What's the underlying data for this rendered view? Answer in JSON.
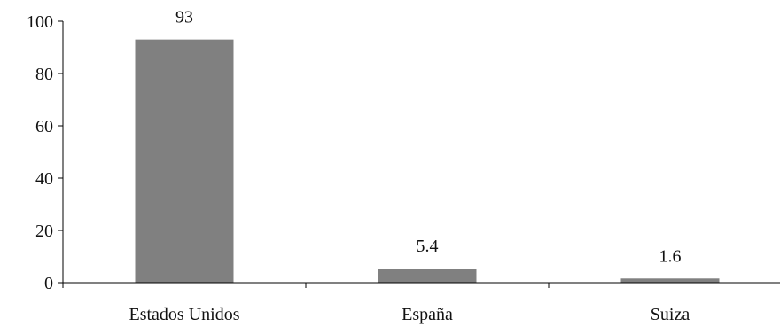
{
  "chart_data": {
    "type": "bar",
    "categories": [
      "Estados Unidos",
      "España",
      "Suiza"
    ],
    "values": [
      93,
      5.4,
      1.6
    ],
    "data_labels": [
      "93",
      "5.4",
      "1.6"
    ],
    "ylim": [
      0,
      100
    ],
    "yticks": [
      0,
      20,
      40,
      60,
      80,
      100
    ],
    "grid": false,
    "legend": "none",
    "colors": {
      "bar": "#808080",
      "axis": "#000000"
    }
  }
}
